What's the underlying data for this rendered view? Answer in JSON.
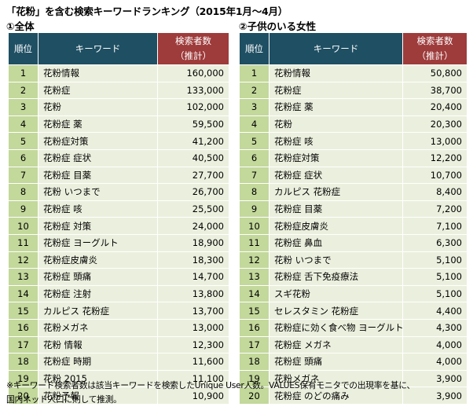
{
  "title": "「花粉」を含む検索キーワードランキング（2015年1月～4月）",
  "headers": {
    "rank": "順位",
    "keyword": "キーワード",
    "count_line1": "検索者数",
    "count_line2": "（推計）"
  },
  "panels": [
    {
      "title": "①全体",
      "rows": [
        {
          "rank": "1",
          "keyword": "花粉情報",
          "count": "160,000"
        },
        {
          "rank": "2",
          "keyword": "花粉症",
          "count": "133,000"
        },
        {
          "rank": "3",
          "keyword": "花粉",
          "count": "102,000"
        },
        {
          "rank": "4",
          "keyword": "花粉症 薬",
          "count": "59,500"
        },
        {
          "rank": "5",
          "keyword": "花粉症対策",
          "count": "41,200"
        },
        {
          "rank": "6",
          "keyword": "花粉症 症状",
          "count": "40,500"
        },
        {
          "rank": "7",
          "keyword": "花粉症 目薬",
          "count": "27,700"
        },
        {
          "rank": "8",
          "keyword": "花粉 いつまで",
          "count": "26,700"
        },
        {
          "rank": "9",
          "keyword": "花粉症 咳",
          "count": "25,500"
        },
        {
          "rank": "10",
          "keyword": "花粉症 対策",
          "count": "24,000"
        },
        {
          "rank": "11",
          "keyword": "花粉症 ヨーグルト",
          "count": "18,900"
        },
        {
          "rank": "12",
          "keyword": "花粉症皮膚炎",
          "count": "18,300"
        },
        {
          "rank": "13",
          "keyword": "花粉症 頭痛",
          "count": "14,700"
        },
        {
          "rank": "14",
          "keyword": "花粉症 注射",
          "count": "13,800"
        },
        {
          "rank": "15",
          "keyword": "カルピス 花粉症",
          "count": "13,700"
        },
        {
          "rank": "16",
          "keyword": "花粉メガネ",
          "count": "13,000"
        },
        {
          "rank": "17",
          "keyword": "花粉 情報",
          "count": "12,300"
        },
        {
          "rank": "18",
          "keyword": "花粉症 時期",
          "count": "11,600"
        },
        {
          "rank": "19",
          "keyword": "花粉 2015",
          "count": "11,100"
        },
        {
          "rank": "20",
          "keyword": "花粉予報",
          "count": "10,900"
        }
      ]
    },
    {
      "title": "②子供のいる女性",
      "rows": [
        {
          "rank": "1",
          "keyword": "花粉情報",
          "count": "50,800"
        },
        {
          "rank": "2",
          "keyword": "花粉症",
          "count": "38,700"
        },
        {
          "rank": "3",
          "keyword": "花粉症 薬",
          "count": "20,400"
        },
        {
          "rank": "4",
          "keyword": "花粉",
          "count": "20,300"
        },
        {
          "rank": "5",
          "keyword": "花粉症 咳",
          "count": "13,000"
        },
        {
          "rank": "6",
          "keyword": "花粉症対策",
          "count": "12,200"
        },
        {
          "rank": "7",
          "keyword": "花粉症 症状",
          "count": "10,700"
        },
        {
          "rank": "8",
          "keyword": "カルピス 花粉症",
          "count": "8,400"
        },
        {
          "rank": "9",
          "keyword": "花粉症 目薬",
          "count": "7,200"
        },
        {
          "rank": "10",
          "keyword": "花粉症皮膚炎",
          "count": "7,100"
        },
        {
          "rank": "11",
          "keyword": "花粉症 鼻血",
          "count": "6,300"
        },
        {
          "rank": "12",
          "keyword": "花粉 いつまで",
          "count": "5,100"
        },
        {
          "rank": "13",
          "keyword": "花粉症 舌下免疫療法",
          "count": "5,100"
        },
        {
          "rank": "14",
          "keyword": "スギ花粉",
          "count": "5,100"
        },
        {
          "rank": "15",
          "keyword": "セレスタミン 花粉症",
          "count": "4,400"
        },
        {
          "rank": "16",
          "keyword": "花粉症に効く食べ物 ヨーグルト",
          "count": "4,300"
        },
        {
          "rank": "17",
          "keyword": "花粉症 メガネ",
          "count": "4,000"
        },
        {
          "rank": "18",
          "keyword": "花粉症 頭痛",
          "count": "4,000"
        },
        {
          "rank": "19",
          "keyword": "花粉メガネ",
          "count": "3,900"
        },
        {
          "rank": "20",
          "keyword": "花粉症 のどの痛み",
          "count": "3,900"
        }
      ]
    }
  ],
  "note_line1": "※キーワード検索者数は該当キーワードを検索したUnique User人数。VALUES保有モニタでの出現率を基に、",
  "note_line2": "国内ネット人口に則して推測。",
  "colors": {
    "header_bg": "#1f4f63",
    "count_header_bg": "#9e3b3b",
    "rank_cell_bg": "#c3d89b",
    "body_cell_bg": "#ebf0de"
  }
}
